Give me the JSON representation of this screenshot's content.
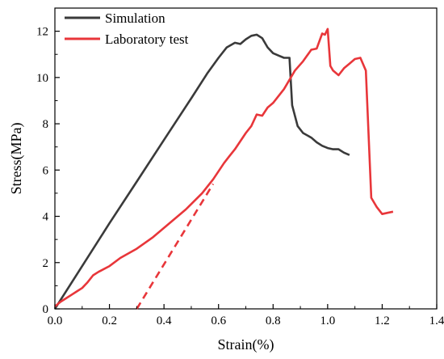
{
  "chart_data": {
    "type": "line",
    "title": "",
    "xlabel": "Strain(%)",
    "ylabel": "Stress(MPa)",
    "xlim": [
      0.0,
      1.4
    ],
    "ylim": [
      0,
      13
    ],
    "x_ticks": [
      "0.0",
      "0.2",
      "0.4",
      "0.6",
      "0.8",
      "1.0",
      "1.2",
      "1.4"
    ],
    "y_ticks": [
      "0",
      "2",
      "4",
      "6",
      "8",
      "10",
      "12"
    ],
    "grid": false,
    "legend_position": "top-left",
    "series": [
      {
        "name": "Simulation",
        "color": "#3a3a3a",
        "style": "solid",
        "x": [
          0.0,
          0.1,
          0.2,
          0.3,
          0.4,
          0.5,
          0.56,
          0.6,
          0.63,
          0.66,
          0.68,
          0.7,
          0.72,
          0.74,
          0.76,
          0.78,
          0.8,
          0.82,
          0.84,
          0.86,
          0.87,
          0.89,
          0.91,
          0.94,
          0.96,
          0.98,
          1.0,
          1.02,
          1.04,
          1.06,
          1.08
        ],
        "y": [
          0.0,
          1.85,
          3.7,
          5.5,
          7.3,
          9.1,
          10.2,
          10.85,
          11.3,
          11.5,
          11.45,
          11.65,
          11.8,
          11.85,
          11.7,
          11.3,
          11.05,
          10.95,
          10.85,
          10.85,
          8.8,
          7.9,
          7.6,
          7.4,
          7.2,
          7.05,
          6.95,
          6.9,
          6.9,
          6.75,
          6.65
        ]
      },
      {
        "name": "Laboratory test",
        "color": "#e8363a",
        "style": "solid",
        "x": [
          0.0,
          0.02,
          0.04,
          0.06,
          0.08,
          0.1,
          0.12,
          0.14,
          0.16,
          0.2,
          0.24,
          0.3,
          0.36,
          0.42,
          0.48,
          0.54,
          0.58,
          0.62,
          0.64,
          0.66,
          0.7,
          0.72,
          0.74,
          0.76,
          0.78,
          0.8,
          0.84,
          0.88,
          0.91,
          0.94,
          0.96,
          0.98,
          0.99,
          1.0,
          1.01,
          1.02,
          1.04,
          1.06,
          1.08,
          1.1,
          1.12,
          1.14,
          1.16,
          1.18,
          1.2,
          1.22,
          1.24
        ],
        "y": [
          0.1,
          0.3,
          0.45,
          0.6,
          0.75,
          0.9,
          1.15,
          1.45,
          1.6,
          1.85,
          2.2,
          2.6,
          3.1,
          3.7,
          4.3,
          5.0,
          5.6,
          6.3,
          6.6,
          6.9,
          7.6,
          7.9,
          8.4,
          8.35,
          8.7,
          8.9,
          9.5,
          10.3,
          10.7,
          11.2,
          11.25,
          11.9,
          11.85,
          12.1,
          10.5,
          10.3,
          10.1,
          10.4,
          10.6,
          10.8,
          10.85,
          10.3,
          4.8,
          4.4,
          4.1,
          4.15,
          4.2
        ]
      },
      {
        "name": "",
        "color": "#e8363a",
        "style": "dashed",
        "x": [
          0.3,
          0.58
        ],
        "y": [
          0.0,
          5.4
        ]
      }
    ]
  }
}
